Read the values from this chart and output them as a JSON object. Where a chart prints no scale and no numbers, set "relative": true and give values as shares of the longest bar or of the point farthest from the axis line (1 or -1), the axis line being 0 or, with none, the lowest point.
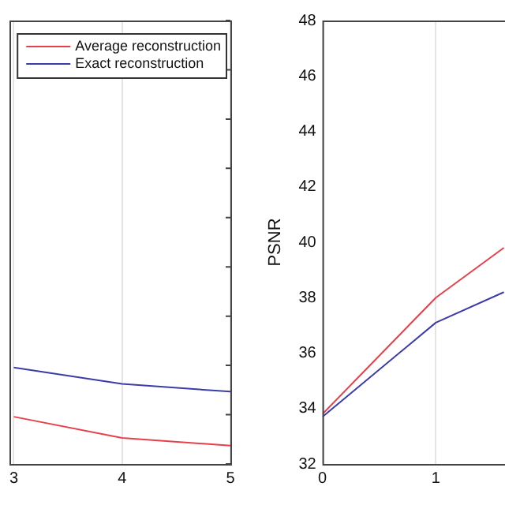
{
  "chart_data": [
    {
      "type": "line",
      "relative": true,
      "x": [
        3,
        4,
        5
      ],
      "xlim": [
        2.96,
        5
      ],
      "xticks": [
        3,
        4,
        5
      ],
      "grid": "x",
      "legend": "top right",
      "series": [
        {
          "name": "Average reconstruction",
          "color": "#e8404a",
          "values": [
            0.49,
            0.27,
            0.19
          ]
        },
        {
          "name": "Exact reconstruction",
          "color": "#3c3ca8",
          "values": [
            1,
            0.83,
            0.75
          ]
        }
      ]
    },
    {
      "type": "line",
      "x": [
        0,
        1,
        1.6
      ],
      "xlim": [
        0,
        1.61
      ],
      "xticks": [
        0,
        1
      ],
      "ylim": [
        32,
        48
      ],
      "yticks": [
        32,
        34,
        36,
        38,
        40,
        42,
        44,
        46,
        48
      ],
      "ylabel": "PSNR",
      "grid": "x",
      "legend": false,
      "series": [
        {
          "color": "#e8404a",
          "values": [
            33.8,
            38,
            39.8
          ]
        },
        {
          "color": "#3c3ca8",
          "values": [
            33.7,
            37.1,
            38.2
          ]
        }
      ]
    }
  ]
}
